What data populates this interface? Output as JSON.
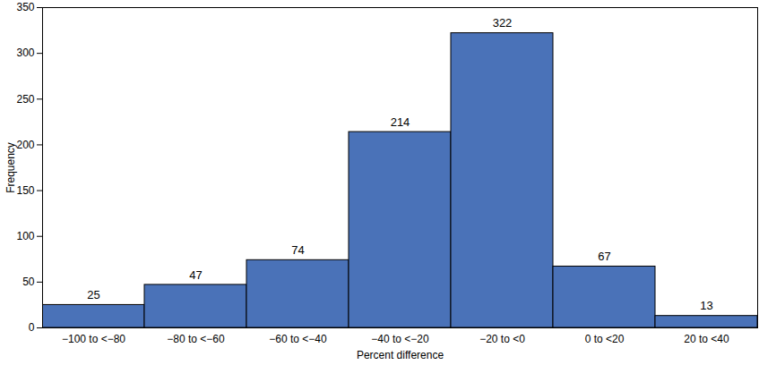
{
  "chart_data": {
    "type": "bar",
    "x_label": "Percent difference",
    "y_label": "Frequency",
    "categories": [
      "−100 to <−80",
      "−80 to <−60",
      "−60 to <−40",
      "−40 to <−20",
      "−20 to <0",
      "0 to <20",
      "20 to <40"
    ],
    "values": [
      25,
      47,
      74,
      214,
      322,
      67,
      13
    ],
    "color": "#4a72b8",
    "ylim": [
      0,
      350
    ],
    "yticks": [
      0,
      50,
      100,
      150,
      200,
      250,
      300,
      350
    ],
    "grid": false,
    "data_labels": true
  }
}
